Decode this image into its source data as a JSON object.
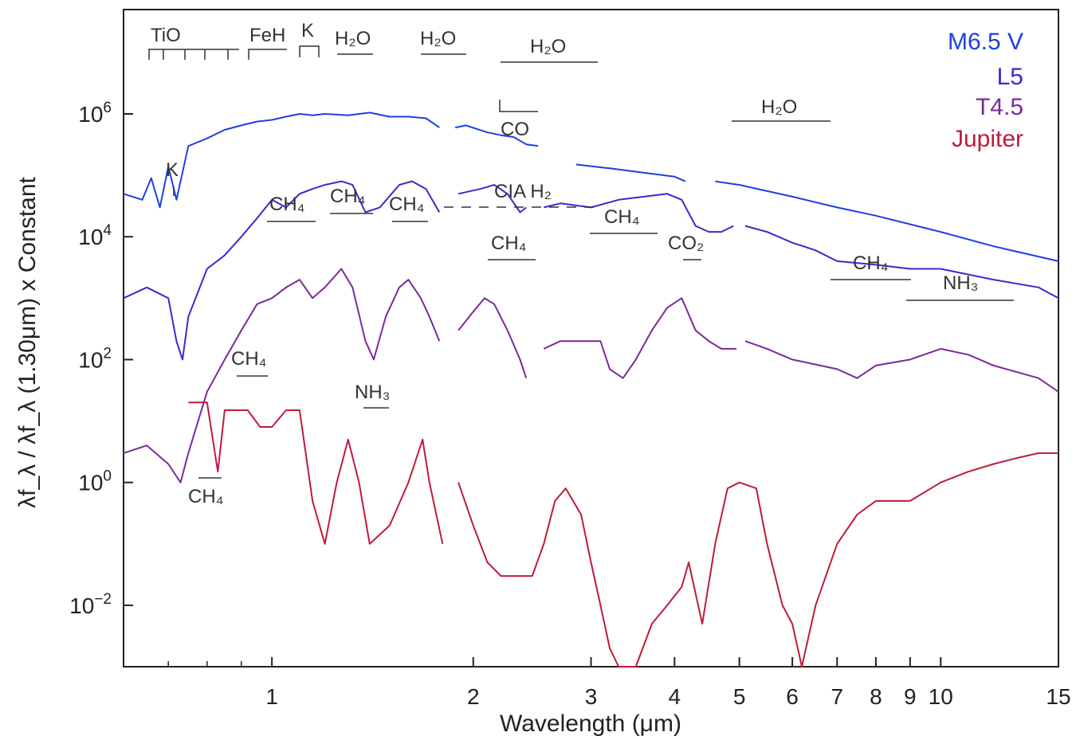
{
  "chart_data": {
    "type": "line",
    "xlabel": "Wavelength (μm)",
    "ylabel": "λf_λ / λf_λ (1.30μm) x Constant",
    "xscale": "log",
    "yscale": "log",
    "xlim": [
      0.6,
      15
    ],
    "ylim": [
      0.001,
      50000000
    ],
    "grid": false,
    "legend_position": "top-right",
    "x_ticks": [
      {
        "value": 1,
        "label": "1"
      },
      {
        "value": 2,
        "label": "2"
      },
      {
        "value": 3,
        "label": "3"
      },
      {
        "value": 4,
        "label": "4"
      },
      {
        "value": 5,
        "label": "5"
      },
      {
        "value": 6,
        "label": "6"
      },
      {
        "value": 7,
        "label": "7"
      },
      {
        "value": 8,
        "label": "8"
      },
      {
        "value": 9,
        "label": "9"
      },
      {
        "value": 10,
        "label": "10"
      },
      {
        "value": 15,
        "label": "15"
      }
    ],
    "y_ticks": [
      {
        "value": 1000000,
        "base": "10",
        "exp": "6"
      },
      {
        "value": 10000,
        "base": "10",
        "exp": "4"
      },
      {
        "value": 100,
        "base": "10",
        "exp": "2"
      },
      {
        "value": 1,
        "base": "10",
        "exp": "0"
      },
      {
        "value": 0.01,
        "base": "10",
        "exp": "−2"
      }
    ],
    "series": [
      {
        "name": "M6.5 V",
        "color": "#1f3fe0",
        "points": [
          [
            0.6,
            50000
          ],
          [
            0.64,
            40000
          ],
          [
            0.66,
            90000
          ],
          [
            0.68,
            30000
          ],
          [
            0.7,
            140000
          ],
          [
            0.72,
            40000
          ],
          [
            0.75,
            300000
          ],
          [
            0.8,
            400000
          ],
          [
            0.85,
            550000
          ],
          [
            0.9,
            650000
          ],
          [
            0.95,
            750000
          ],
          [
            1.0,
            800000
          ],
          [
            1.05,
            900000
          ],
          [
            1.1,
            1000000
          ],
          [
            1.15,
            950000
          ],
          [
            1.2,
            1000000
          ],
          [
            1.3,
            950000
          ],
          [
            1.4,
            1050000
          ],
          [
            1.5,
            900000
          ],
          [
            1.6,
            900000
          ],
          [
            1.7,
            850000
          ],
          [
            1.78,
            600000
          ],
          [
            1.82,
            null
          ],
          [
            1.88,
            600000
          ],
          [
            1.95,
            650000
          ],
          [
            2.1,
            500000
          ],
          [
            2.2,
            450000
          ],
          [
            2.3,
            420000
          ],
          [
            2.4,
            320000
          ],
          [
            2.5,
            300000
          ],
          [
            2.55,
            null
          ],
          [
            2.85,
            150000
          ],
          [
            3.2,
            130000
          ],
          [
            3.6,
            110000
          ],
          [
            4.0,
            95000
          ],
          [
            4.15,
            80000
          ],
          [
            4.25,
            null
          ],
          [
            4.6,
            80000
          ],
          [
            5.0,
            70000
          ],
          [
            6.0,
            45000
          ],
          [
            7.0,
            30000
          ],
          [
            8.0,
            22000
          ],
          [
            9.0,
            16000
          ],
          [
            10.0,
            12000
          ],
          [
            12.0,
            7000
          ],
          [
            15.0,
            4000
          ]
        ]
      },
      {
        "name": "L5",
        "color": "#3a2ad0",
        "points": [
          [
            0.6,
            1000
          ],
          [
            0.65,
            1500
          ],
          [
            0.7,
            1000
          ],
          [
            0.72,
            200
          ],
          [
            0.735,
            100
          ],
          [
            0.75,
            500
          ],
          [
            0.8,
            3000
          ],
          [
            0.85,
            5000
          ],
          [
            0.9,
            10000
          ],
          [
            0.95,
            20000
          ],
          [
            1.0,
            40000
          ],
          [
            1.05,
            30000
          ],
          [
            1.1,
            50000
          ],
          [
            1.15,
            60000
          ],
          [
            1.2,
            70000
          ],
          [
            1.27,
            80000
          ],
          [
            1.32,
            70000
          ],
          [
            1.38,
            25000
          ],
          [
            1.45,
            30000
          ],
          [
            1.55,
            70000
          ],
          [
            1.62,
            80000
          ],
          [
            1.7,
            60000
          ],
          [
            1.78,
            25000
          ],
          [
            1.82,
            null
          ],
          [
            1.9,
            50000
          ],
          [
            2.05,
            60000
          ],
          [
            2.15,
            70000
          ],
          [
            2.25,
            50000
          ],
          [
            2.35,
            25000
          ],
          [
            2.4,
            30000
          ],
          [
            2.42,
            null
          ],
          [
            2.55,
            30000
          ],
          [
            2.7,
            35000
          ],
          [
            3.0,
            30000
          ],
          [
            3.3,
            40000
          ],
          [
            3.6,
            45000
          ],
          [
            3.9,
            50000
          ],
          [
            4.1,
            40000
          ],
          [
            4.3,
            15000
          ],
          [
            4.5,
            12000
          ],
          [
            4.7,
            12000
          ],
          [
            4.9,
            15000
          ],
          [
            4.95,
            null
          ],
          [
            5.1,
            15000
          ],
          [
            5.5,
            12000
          ],
          [
            6.0,
            8000
          ],
          [
            6.5,
            6000
          ],
          [
            7.0,
            4000
          ],
          [
            8.0,
            3500
          ],
          [
            9.0,
            3000
          ],
          [
            10.0,
            3000
          ],
          [
            12.0,
            2000
          ],
          [
            14.0,
            1500
          ],
          [
            15.0,
            1000
          ]
        ]
      },
      {
        "name": "T4.5",
        "color": "#7a2a9a",
        "points": [
          [
            0.6,
            3
          ],
          [
            0.65,
            4
          ],
          [
            0.7,
            2
          ],
          [
            0.73,
            1
          ],
          [
            0.75,
            3
          ],
          [
            0.8,
            30
          ],
          [
            0.85,
            100
          ],
          [
            0.9,
            300
          ],
          [
            0.95,
            800
          ],
          [
            1.0,
            1000
          ],
          [
            1.05,
            1500
          ],
          [
            1.1,
            2000
          ],
          [
            1.15,
            1000
          ],
          [
            1.2,
            1500
          ],
          [
            1.27,
            3000
          ],
          [
            1.32,
            1500
          ],
          [
            1.38,
            200
          ],
          [
            1.42,
            100
          ],
          [
            1.48,
            500
          ],
          [
            1.55,
            1500
          ],
          [
            1.6,
            2000
          ],
          [
            1.67,
            1000
          ],
          [
            1.72,
            500
          ],
          [
            1.78,
            200
          ],
          [
            1.82,
            null
          ],
          [
            1.9,
            300
          ],
          [
            2.0,
            600
          ],
          [
            2.08,
            1000
          ],
          [
            2.15,
            800
          ],
          [
            2.25,
            300
          ],
          [
            2.35,
            100
          ],
          [
            2.4,
            50
          ],
          [
            2.42,
            null
          ],
          [
            2.55,
            150
          ],
          [
            2.7,
            200
          ],
          [
            2.9,
            200
          ],
          [
            3.1,
            200
          ],
          [
            3.2,
            70
          ],
          [
            3.35,
            50
          ],
          [
            3.5,
            100
          ],
          [
            3.7,
            300
          ],
          [
            3.9,
            700
          ],
          [
            4.1,
            1000
          ],
          [
            4.3,
            300
          ],
          [
            4.5,
            200
          ],
          [
            4.7,
            150
          ],
          [
            4.95,
            150
          ],
          [
            5.0,
            null
          ],
          [
            5.1,
            200
          ],
          [
            5.5,
            150
          ],
          [
            6.0,
            100
          ],
          [
            7.0,
            70
          ],
          [
            7.5,
            50
          ],
          [
            8.0,
            80
          ],
          [
            9.0,
            100
          ],
          [
            10.0,
            150
          ],
          [
            11.0,
            120
          ],
          [
            12.0,
            80
          ],
          [
            14.0,
            50
          ],
          [
            15.0,
            30
          ]
        ]
      },
      {
        "name": "Jupiter",
        "color": "#c01a3a",
        "points": [
          [
            0.75,
            20
          ],
          [
            0.8,
            20
          ],
          [
            0.83,
            1.5
          ],
          [
            0.85,
            15
          ],
          [
            0.89,
            15
          ],
          [
            0.92,
            15
          ],
          [
            0.96,
            8
          ],
          [
            1.0,
            8
          ],
          [
            1.05,
            15
          ],
          [
            1.1,
            15
          ],
          [
            1.15,
            0.5
          ],
          [
            1.2,
            0.1
          ],
          [
            1.25,
            1
          ],
          [
            1.3,
            5
          ],
          [
            1.35,
            1
          ],
          [
            1.4,
            0.1
          ],
          [
            1.5,
            0.2
          ],
          [
            1.6,
            1
          ],
          [
            1.68,
            5
          ],
          [
            1.72,
            1
          ],
          [
            1.8,
            0.1
          ],
          [
            1.85,
            null
          ],
          [
            1.9,
            1
          ],
          [
            2.0,
            0.2
          ],
          [
            2.1,
            0.05
          ],
          [
            2.2,
            0.03
          ],
          [
            2.3,
            0.03
          ],
          [
            2.45,
            0.03
          ],
          [
            2.55,
            0.1
          ],
          [
            2.65,
            0.5
          ],
          [
            2.75,
            0.8
          ],
          [
            2.9,
            0.3
          ],
          [
            3.0,
            0.05
          ],
          [
            3.1,
            0.01
          ],
          [
            3.2,
            0.002
          ],
          [
            3.3,
            0.001
          ],
          [
            3.5,
            0.001
          ],
          [
            3.7,
            0.005
          ],
          [
            3.9,
            0.01
          ],
          [
            4.1,
            0.02
          ],
          [
            4.2,
            0.05
          ],
          [
            4.4,
            0.005
          ],
          [
            4.6,
            0.1
          ],
          [
            4.8,
            0.8
          ],
          [
            5.0,
            1
          ],
          [
            5.3,
            0.8
          ],
          [
            5.5,
            0.1
          ],
          [
            5.8,
            0.01
          ],
          [
            6.0,
            0.005
          ],
          [
            6.2,
            0.001
          ],
          [
            6.5,
            0.01
          ],
          [
            7.0,
            0.1
          ],
          [
            7.5,
            0.3
          ],
          [
            8.0,
            0.5
          ],
          [
            9.0,
            0.5
          ],
          [
            10.0,
            1
          ],
          [
            11.0,
            1.5
          ],
          [
            12.0,
            2
          ],
          [
            13.0,
            2.5
          ],
          [
            14.0,
            3
          ],
          [
            15.0,
            3
          ]
        ]
      }
    ],
    "annotations": [
      {
        "id": "tio",
        "text": "TiO"
      },
      {
        "id": "feh",
        "text": "FeH"
      },
      {
        "id": "k-top",
        "text": "K"
      },
      {
        "id": "h2o-1",
        "text": "H₂O"
      },
      {
        "id": "h2o-2",
        "text": "H₂O"
      },
      {
        "id": "h2o-3",
        "text": "H₂O"
      },
      {
        "id": "h2o-4",
        "text": "H₂O"
      },
      {
        "id": "co",
        "text": "CO"
      },
      {
        "id": "k-mid",
        "text": "K"
      },
      {
        "id": "ch4-1",
        "text": "CH₄"
      },
      {
        "id": "ch4-2",
        "text": "CH₄"
      },
      {
        "id": "ch4-3",
        "text": "CH₄"
      },
      {
        "id": "cia-h2",
        "text": "CIA H₂"
      },
      {
        "id": "ch4-4",
        "text": "CH₄"
      },
      {
        "id": "ch4-5",
        "text": "CH₄"
      },
      {
        "id": "co2",
        "text": "CO₂"
      },
      {
        "id": "ch4-6",
        "text": "CH₄"
      },
      {
        "id": "nh3-1",
        "text": "NH₃"
      },
      {
        "id": "ch4-7",
        "text": "CH₄"
      },
      {
        "id": "nh3-2",
        "text": "NH₃"
      },
      {
        "id": "ch4-8",
        "text": "CH₄"
      }
    ]
  }
}
